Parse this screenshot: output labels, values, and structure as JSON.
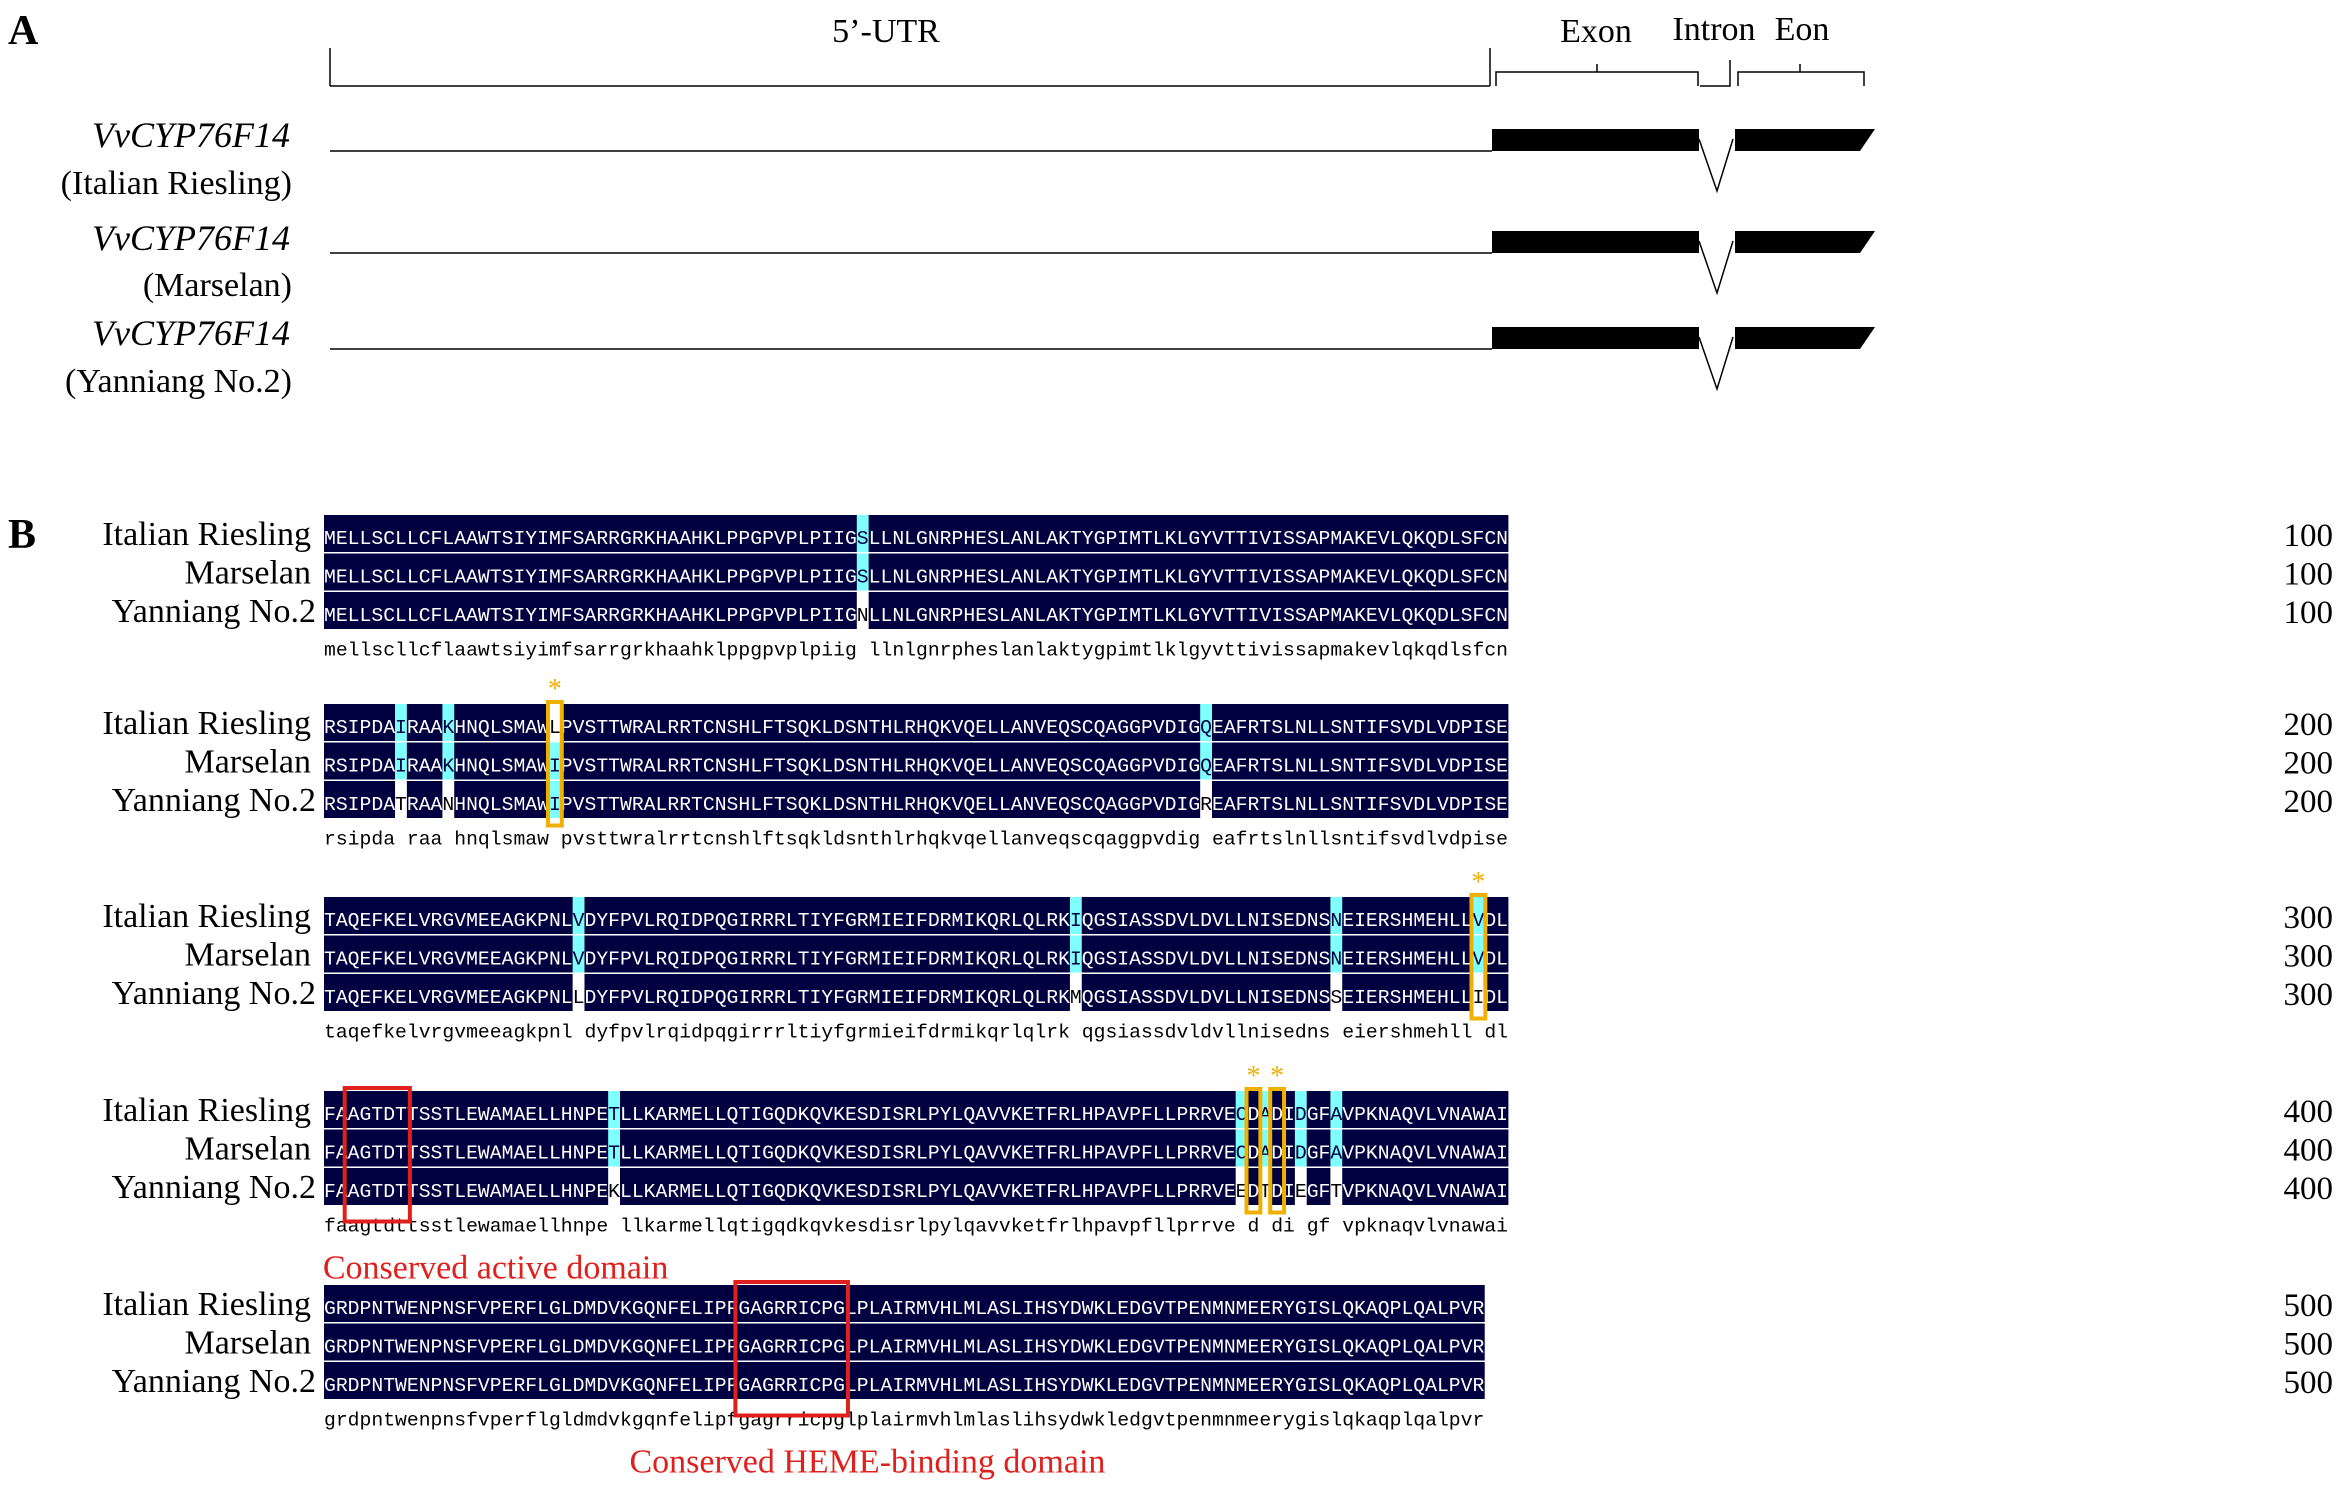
{
  "panelA": {
    "label": "A",
    "headers": {
      "utr": "5’-UTR",
      "exon": "Exon",
      "intron": "Intron",
      "eon": "Eon"
    },
    "tracks": [
      {
        "gene": "VvCYP76F14",
        "cultivar": "(Italian Riesling)"
      },
      {
        "gene": "VvCYP76F14",
        "cultivar": "(Marselan)"
      },
      {
        "gene": "VvCYP76F14",
        "cultivar": "(Yanniang No.2)"
      }
    ]
  },
  "panelB": {
    "label": "B",
    "colors": {
      "conserved": "#000040",
      "variable": "#80ffff",
      "domain_box": "#e0201c",
      "site_box": "#f0b000"
    },
    "blocks": [
      {
        "rows": [
          {
            "name": "Italian Riesling",
            "seq": "MELLSCLLCFLAAWTSIYIMFSARRGRKHAAHKLPPGPVPLPIIGSLLNLGNRPHESLANLAKTYGPIMTLKLGYVTTIVISSAPMAKEVLQKQDLSFCN",
            "num": "100"
          },
          {
            "name": "Marselan",
            "seq": "MELLSCLLCFLAAWTSIYIMFSARRGRKHAAHKLPPGPVPLPIIGSLLNLGNRPHESLANLAKTYGPIMTLKLGYVTTIVISSAPMAKEVLQKQDLSFCN",
            "num": "100"
          },
          {
            "name": "Yanniang No.2",
            "seq": "MELLSCLLCFLAAWTSIYIMFSARRGRKHAAHKLPPGPVPLPIIGNLLNLGNRPHESLANLAKTYGPIMTLKLGYVTTIVISSAPMAKEVLQKQDLSFCN",
            "num": "100"
          }
        ],
        "consensus": "mellscllcflaawtsiyimfsarrgrkhaahklppgpvplpiig llnlgnrpheslanlaktygpimtlklgyvttivissapmakevlqkqdlsfcn",
        "boxes": [],
        "asterisks": [],
        "annotations": []
      },
      {
        "rows": [
          {
            "name": "Italian Riesling",
            "seq": "RSIPDAIRAAKHNQLSMAWLPVSTTWRALRRTCNSHLFTSQKLDSNTHLRHQKVQELLANVEQSCQAGGPVDIGQEAFRTSLNLLSNTIFSVDLVDPISE",
            "num": "200"
          },
          {
            "name": "Marselan",
            "seq": "RSIPDAIRAAKHNQLSMAWIPVSTTWRALRRTCNSHLFTSQKLDSNTHLRHQKVQELLANVEQSCQAGGPVDIGQEAFRTSLNLLSNTIFSVDLVDPISE",
            "num": "200"
          },
          {
            "name": "Yanniang No.2",
            "seq": "RSIPDATRAANHNQLSMAWIPVSTTWRALRRTCNSHLFTSQKLDSNTHLRHQKVQELLANVEQSCQAGGPVDIGREAFRTSLNLLSNTIFSVDLVDPISE",
            "num": "200"
          }
        ],
        "consensus": "rsipda raa hnqlsmaw pvsttwralrrtcnshlftsqkldsnthlrhqkvqellanveqscqaggpvdig eafrtslnllsntifsvdlvdpise",
        "boxes": [
          {
            "start": 19,
            "len": 1,
            "kind": "site"
          }
        ],
        "asterisks": [
          {
            "col": 19,
            "text": "*"
          }
        ],
        "annotations": []
      },
      {
        "rows": [
          {
            "name": "Italian Riesling",
            "seq": "TAQEFKELVRGVMEEAGKPNLVDYFPVLRQIDPQGIRRRLTIYFGRMIEIFDRMIKQRLQLRKIQGSIASSDVLDVLLNISEDNSNEIERSHMEHLLVDL",
            "num": "300"
          },
          {
            "name": "Marselan",
            "seq": "TAQEFKELVRGVMEEAGKPNLVDYFPVLRQIDPQGIRRRLTIYFGRMIEIFDRMIKQRLQLRKIQGSIASSDVLDVLLNISEDNSNEIERSHMEHLLVDL",
            "num": "300"
          },
          {
            "name": "Yanniang No.2",
            "seq": "TAQEFKELVRGVMEEAGKPNLLDYFPVLRQIDPQGIRRRLTIYFGRMIEIFDRMIKQRLQLRKMQGSIASSDVLDVLLNISEDNSSEIERSHMEHLLIDL",
            "num": "300"
          }
        ],
        "consensus": "taqefkelvrgvmeeagkpnl dyfpvlrqidpqgirrrltiyfgrmieifdrmikqrlqlrk qgsiassdvldvllnisedns eiershmehll dl",
        "boxes": [
          {
            "start": 97,
            "len": 1,
            "kind": "site"
          }
        ],
        "asterisks": [
          {
            "col": 97,
            "text": "*"
          }
        ],
        "annotations": []
      },
      {
        "rows": [
          {
            "name": "Italian Riesling",
            "seq": "FAAGTDTTSSTLEWAMAELLHNPETLLKARMELLQTIGQDKQVKESDISRLPYLQAVVKETFRLHPAVPFLLPRRVECDADIDGFAVPKNAQVLVNAWAI",
            "num": "400"
          },
          {
            "name": "Marselan",
            "seq": "FAAGTDTTSSTLEWAMAELLHNPETLLKARMELLQTIGQDKQVKESDISRLPYLQAVVKETFRLHPAVPFLLPRRVECDADIDGFAVPKNAQVLVNAWAI",
            "num": "400"
          },
          {
            "name": "Yanniang No.2",
            "seq": "FAAGTDTTSSTLEWAMAELLHNPEKLLKARMELLQTIGQDKQVKESDISRLPYLQAVVKETFRLHPAVPFLLPRRVEEDTDIEGFTVPKNAQVLVNAWAI",
            "num": "400"
          }
        ],
        "consensus": "faagtdttsstlewamaellhnpe llkarmellqtigqdkqvkesdisrlpylqavvketfrlhpavpfllprrve d di gf vpknaqvlvnawai",
        "boxes": [
          {
            "start": 2,
            "len": 5,
            "kind": "domain"
          },
          {
            "start": 78,
            "len": 1,
            "kind": "site"
          },
          {
            "start": 80,
            "len": 1,
            "kind": "site"
          }
        ],
        "asterisks": [
          {
            "col": 78,
            "text": "*"
          },
          {
            "col": 80,
            "text": "*"
          }
        ],
        "annotations": [
          {
            "text": "Conserved active domain",
            "col": -0.1
          }
        ]
      },
      {
        "rows": [
          {
            "name": "Italian Riesling",
            "seq": "GRDPNTWENPNSFVPERFLGLDMDVKGQNFELIPFGAGRRICPGLPLAIRMVHLMLASLIHSYDWKLEDGVTPENMNMEERYGISLQKAQPLQALPVR",
            "num": "500"
          },
          {
            "name": "Marselan",
            "seq": "GRDPNTWENPNSFVPERFLGLDMDVKGQNFELIPFGAGRRICPGLPLAIRMVHLMLASLIHSYDWKLEDGVTPENMNMEERYGISLQKAQPLQALPVR",
            "num": "500"
          },
          {
            "name": "Yanniang No.2",
            "seq": "GRDPNTWENPNSFVPERFLGLDMDVKGQNFELIPFGAGRRICPGLPLAIRMVHLMLASLIHSYDWKLEDGVTPENMNMEERYGISLQKAQPLQALPVR",
            "num": "500"
          }
        ],
        "consensus": "grdpntwenpnsfvperflgldmdvkgqnfelipfgagrricpglplairmvhlmlaslihsydwkledgvtpenmnmeerygislqkaqplqalpvr",
        "boxes": [
          {
            "start": 35,
            "len": 9,
            "kind": "domain"
          }
        ],
        "asterisks": [],
        "annotations": [
          {
            "text": "Conserved HEME-binding domain",
            "col": 25.8
          }
        ]
      }
    ]
  }
}
